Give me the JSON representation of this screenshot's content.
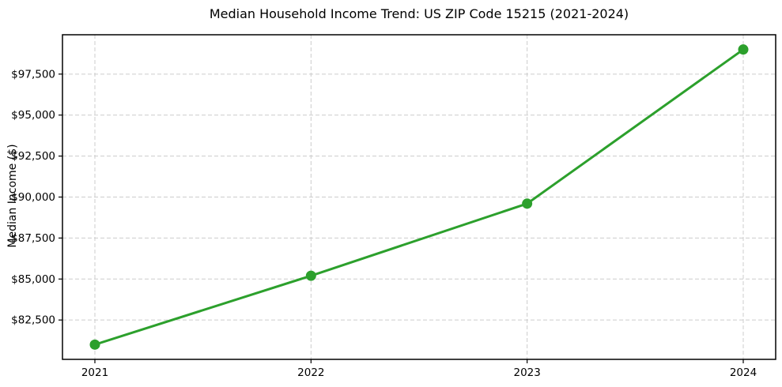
{
  "chart_data": {
    "type": "line",
    "title": "Median Household Income Trend: US ZIP Code 15215 (2021-2024)",
    "xlabel": "",
    "ylabel": "Median Income ($)",
    "x": [
      2021,
      2022,
      2023,
      2024
    ],
    "xtick_labels": [
      "2021",
      "2022",
      "2023",
      "2024"
    ],
    "series": [
      {
        "name": "Median Household Income",
        "values": [
          81000,
          85200,
          89600,
          99000
        ]
      }
    ],
    "yticks": [
      82500,
      85000,
      87500,
      90000,
      92500,
      95000,
      97500
    ],
    "ytick_labels": [
      "$82,500",
      "$85,000",
      "$87,500",
      "$90,000",
      "$92,500",
      "$95,000",
      "$97,500"
    ],
    "xlim": [
      2020.85,
      2024.15
    ],
    "ylim": [
      80100,
      99900
    ],
    "grid": true,
    "legend": "none",
    "colors": {
      "line": "#2ca02c",
      "marker": "#2ca02c",
      "grid": "#cccccc",
      "axes": "#000000",
      "text": "#000000",
      "background": "#ffffff"
    }
  }
}
